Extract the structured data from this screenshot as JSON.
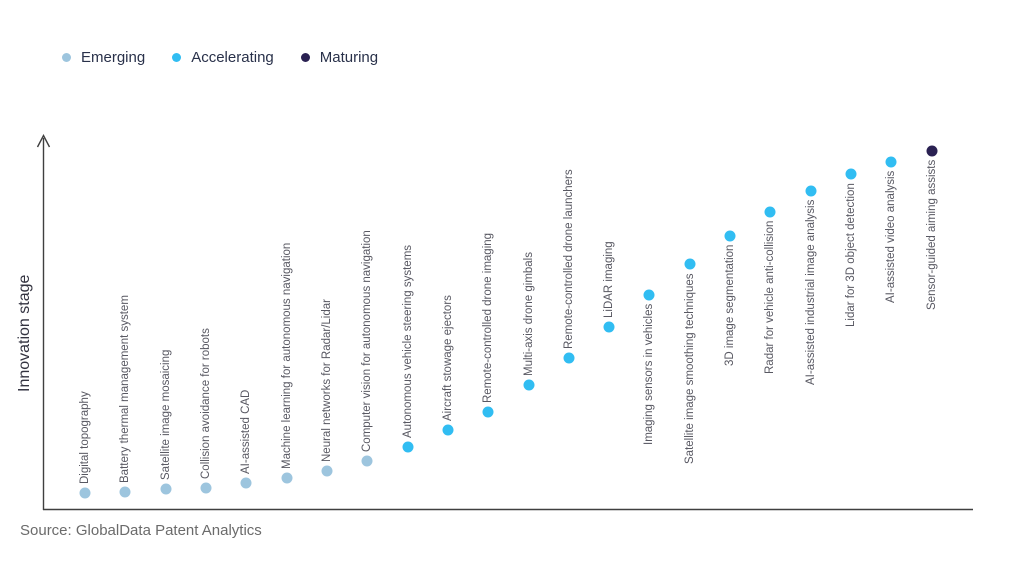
{
  "legend": {
    "items": [
      {
        "key": "emerging",
        "label": "Emerging",
        "color": "#9dc5de"
      },
      {
        "key": "accelerating",
        "label": "Accelerating",
        "color": "#31bdf2"
      },
      {
        "key": "maturing",
        "label": "Maturing",
        "color": "#2a2152"
      }
    ]
  },
  "y_axis_title": "Innovation stage",
  "source_note": "Source: GlobalData Patent Analytics",
  "chart_data": {
    "type": "scatter",
    "title": "",
    "xlabel": "",
    "ylabel": "Innovation stage",
    "ylim": [
      0,
      375
    ],
    "grid": false,
    "legend_position": "top-left",
    "x_is_ordinal_rank": true,
    "points": [
      {
        "rank": 1,
        "label": "Digital topography",
        "stage": "Emerging",
        "value": 17
      },
      {
        "rank": 2,
        "label": "Battery thermal management system",
        "stage": "Emerging",
        "value": 18
      },
      {
        "rank": 3,
        "label": "Satellite image mosaicing",
        "stage": "Emerging",
        "value": 21
      },
      {
        "rank": 4,
        "label": "Collision avoidance for robots",
        "stage": "Emerging",
        "value": 22
      },
      {
        "rank": 5,
        "label": "AI-assisted CAD",
        "stage": "Emerging",
        "value": 27
      },
      {
        "rank": 6,
        "label": "Machine learning for autonomous navigation",
        "stage": "Emerging",
        "value": 32
      },
      {
        "rank": 7,
        "label": "Neural networks for Radar/Lidar",
        "stage": "Emerging",
        "value": 39
      },
      {
        "rank": 8,
        "label": "Computer vision for autonomous navigation",
        "stage": "Emerging",
        "value": 49
      },
      {
        "rank": 9,
        "label": "Autonomous vehicle steering systems",
        "stage": "Accelerating",
        "value": 63
      },
      {
        "rank": 10,
        "label": "Aircraft stowage ejectors",
        "stage": "Accelerating",
        "value": 80
      },
      {
        "rank": 11,
        "label": "Remote-controlled drone imaging",
        "stage": "Accelerating",
        "value": 98
      },
      {
        "rank": 12,
        "label": "Multi-axis drone gimbals",
        "stage": "Accelerating",
        "value": 125
      },
      {
        "rank": 13,
        "label": "Remote-controlled drone launchers",
        "stage": "Accelerating",
        "value": 152
      },
      {
        "rank": 14,
        "label": "LiDAR imaging",
        "stage": "Accelerating",
        "value": 183
      },
      {
        "rank": 15,
        "label": "Imaging sensors in vehicles",
        "stage": "Accelerating",
        "value": 215
      },
      {
        "rank": 16,
        "label": "Satellite image smoothing techniques",
        "stage": "Accelerating",
        "value": 246
      },
      {
        "rank": 17,
        "label": "3D image segmentation",
        "stage": "Accelerating",
        "value": 274
      },
      {
        "rank": 18,
        "label": "Radar for vehicle anti-collision",
        "stage": "Accelerating",
        "value": 298
      },
      {
        "rank": 19,
        "label": "AI-assisted industrial image analysis",
        "stage": "Accelerating",
        "value": 319
      },
      {
        "rank": 20,
        "label": "Lidar for 3D object detection",
        "stage": "Accelerating",
        "value": 336
      },
      {
        "rank": 21,
        "label": "AI-assisted video analysis",
        "stage": "Accelerating",
        "value": 348
      },
      {
        "rank": 22,
        "label": "Sensor-guided aiming assists",
        "stage": "Maturing",
        "value": 359
      }
    ]
  }
}
